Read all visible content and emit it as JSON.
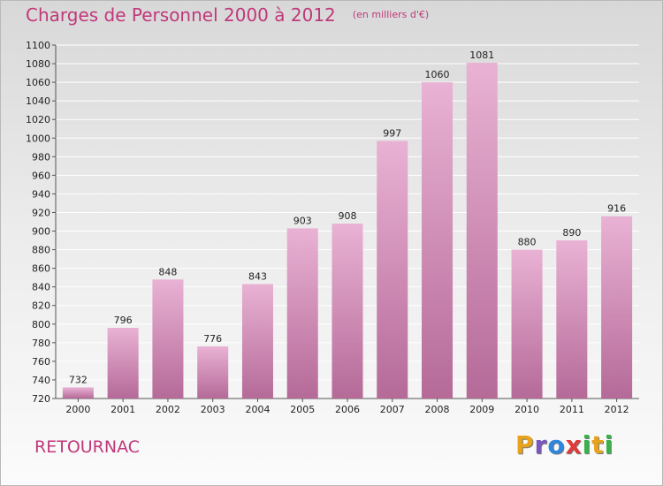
{
  "header": {
    "title": "Charges de Personnel 2000 à 2012",
    "unit": "(en milliers d'€)"
  },
  "footer": {
    "commune": "RETOURNAC",
    "logo": "Proxiti",
    "logo_colors": [
      "#e8a21b",
      "#7a56c2",
      "#2e86de",
      "#e03a3a",
      "#38b24a",
      "#e8a21b",
      "#38b24a"
    ]
  },
  "colors": {
    "bar_light": "#e9b2d4",
    "bar_dark": "#b56a98",
    "accent": "#c0387a"
  },
  "chart_data": {
    "type": "bar",
    "title": "Charges de Personnel 2000 à 2012",
    "subtitle": "(en milliers d'€)",
    "categories": [
      "2000",
      "2001",
      "2002",
      "2003",
      "2004",
      "2005",
      "2006",
      "2007",
      "2008",
      "2009",
      "2010",
      "2011",
      "2012"
    ],
    "values": [
      732,
      796,
      848,
      776,
      843,
      903,
      908,
      997,
      1060,
      1081,
      880,
      890,
      916
    ],
    "ylim": [
      720,
      1100
    ],
    "yticks": [
      720,
      740,
      760,
      780,
      800,
      820,
      840,
      860,
      880,
      900,
      920,
      940,
      960,
      980,
      1000,
      1020,
      1040,
      1060,
      1080,
      1100
    ],
    "xlabel": "",
    "ylabel": "",
    "grid": true,
    "data_labels": true
  }
}
